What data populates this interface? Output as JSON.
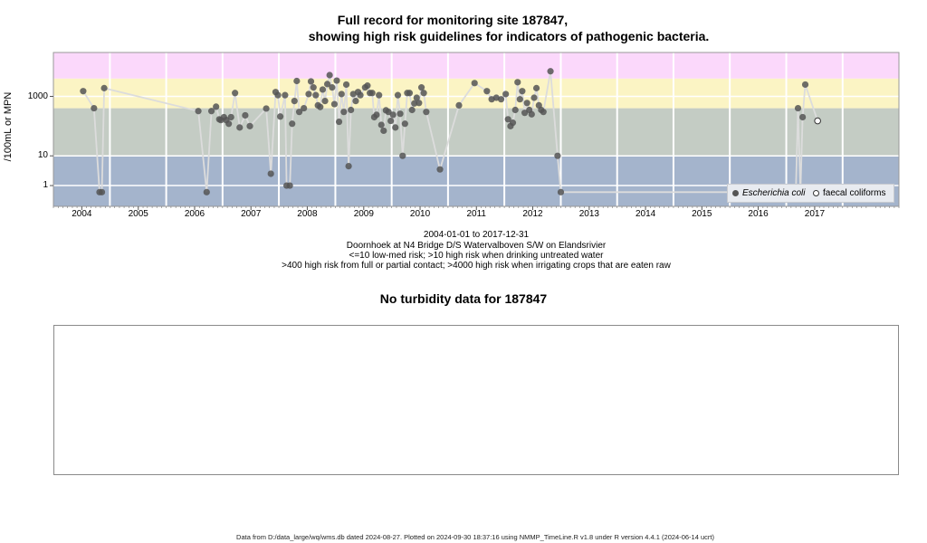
{
  "chart_data": [
    {
      "type": "scatter",
      "title": "Full record for monitoring site 187847,",
      "subtitle": "showing high risk guidelines for indicators of pathogenic bacteria.",
      "ylabel": "/100mL or MPN",
      "yscale": "log",
      "ylim": [
        0.2,
        30000
      ],
      "y_ticks": [
        1,
        10,
        1000
      ],
      "y_tick_labels": [
        "1",
        "10",
        "1000"
      ],
      "xlim": [
        "2003-07-01",
        "2018-07-01"
      ],
      "x_ticks": [
        "2004",
        "2005",
        "2006",
        "2007",
        "2008",
        "2009",
        "2010",
        "2011",
        "2012",
        "2013",
        "2014",
        "2015",
        "2016",
        "2017"
      ],
      "grid": true,
      "legend_placement": "bottom-right",
      "risk_bands": [
        {
          "from": 0.2,
          "to": 10,
          "color": "#a4b4cc"
        },
        {
          "from": 10,
          "to": 400,
          "color": "#c4ccc4"
        },
        {
          "from": 400,
          "to": 4000,
          "color": "#fbf4c4"
        },
        {
          "from": 4000,
          "to": 30000,
          "color": "#fbd8fb"
        }
      ],
      "colors": {
        "ecoli": "#555555",
        "faecal": "#ffffff",
        "line": "#dcdcdc"
      },
      "series": [
        {
          "name": "Escherichia coli",
          "x": [
            "2004-01-10",
            "2004-03-20",
            "2004-04-25",
            "2004-05-10",
            "2004-05-25",
            "2006-01-25",
            "2006-03-20",
            "2006-04-20",
            "2006-05-20",
            "2006-06-10",
            "2006-06-20",
            "2006-07-10",
            "2006-07-25",
            "2006-08-10",
            "2006-08-25",
            "2006-09-20",
            "2006-10-20",
            "2006-11-25",
            "2006-12-25",
            "2007-04-10",
            "2007-05-10",
            "2007-06-10",
            "2007-06-25",
            "2007-07-10",
            "2007-08-10",
            "2007-08-20",
            "2007-09-10",
            "2007-09-25",
            "2007-10-10",
            "2007-10-25",
            "2007-11-10",
            "2007-12-10",
            "2008-01-10",
            "2008-01-25",
            "2008-02-10",
            "2008-02-25",
            "2008-03-10",
            "2008-03-25",
            "2008-04-10",
            "2008-04-25",
            "2008-05-10",
            "2008-05-25",
            "2008-06-10",
            "2008-06-25",
            "2008-07-10",
            "2008-07-25",
            "2008-08-10",
            "2008-08-25",
            "2008-09-10",
            "2008-09-25",
            "2008-10-10",
            "2008-10-25",
            "2008-11-10",
            "2008-11-25",
            "2008-12-10",
            "2009-01-10",
            "2009-01-25",
            "2009-02-10",
            "2009-02-25",
            "2009-03-10",
            "2009-03-25",
            "2009-04-10",
            "2009-04-25",
            "2009-05-10",
            "2009-05-25",
            "2009-06-10",
            "2009-06-25",
            "2009-07-10",
            "2009-07-25",
            "2009-08-10",
            "2009-08-25",
            "2009-09-10",
            "2009-09-25",
            "2009-10-10",
            "2009-10-25",
            "2009-11-10",
            "2009-11-25",
            "2009-12-10",
            "2009-12-25",
            "2010-01-10",
            "2010-01-25",
            "2010-02-10",
            "2010-05-10",
            "2010-09-10",
            "2010-12-20",
            "2011-03-10",
            "2011-04-10",
            "2011-05-10",
            "2011-06-10",
            "2011-07-10",
            "2011-07-25",
            "2011-08-10",
            "2011-08-25",
            "2011-09-10",
            "2011-09-25",
            "2011-10-10",
            "2011-10-25",
            "2011-11-10",
            "2011-11-25",
            "2011-12-10",
            "2011-12-25",
            "2012-01-10",
            "2012-01-25",
            "2012-02-10",
            "2012-02-25",
            "2012-03-10",
            "2012-04-25",
            "2012-06-10",
            "2012-07-01",
            "2016-09-01",
            "2016-09-15",
            "2016-10-01",
            "2016-10-15",
            "2016-11-01"
          ],
          "y": [
            1500,
            400,
            0.6,
            0.6,
            1900,
            320,
            0.6,
            320,
            450,
            170,
            160,
            200,
            160,
            120,
            200,
            1300,
            90,
            230,
            100,
            390,
            2.5,
            1400,
            1100,
            210,
            1100,
            1,
            1,
            120,
            700,
            3300,
            300,
            400,
            1200,
            3200,
            2000,
            1100,
            500,
            440,
            1700,
            700,
            2600,
            5200,
            2000,
            550,
            3400,
            140,
            1200,
            300,
            2500,
            4.5,
            350,
            1200,
            700,
            1400,
            1100,
            2000,
            2300,
            1300,
            1300,
            200,
            240,
            1100,
            110,
            70,
            340,
            300,
            150,
            240,
            90,
            1100,
            260,
            10,
            120,
            1300,
            1300,
            350,
            580,
            900,
            600,
            2000,
            1300,
            300,
            3.5,
            500,
            2800,
            1500,
            800,
            900,
            800,
            1200,
            170,
            100,
            130,
            350,
            3000,
            800,
            1500,
            280,
            600,
            350,
            250,
            900,
            1900,
            500,
            350,
            300,
            7000,
            10,
            0.6,
            0.6,
            400,
            0.6,
            200,
            2500
          ]
        },
        {
          "name": "faecal coliforms",
          "x": [
            "2017-01-20"
          ],
          "y": [
            150
          ]
        }
      ],
      "xlabel_lines": [
        "2004-01-01 to 2017-12-31",
        "Doornhoek at N4 Bridge D/S Watervalboven S/W on Elandsrivier",
        "<=10 low-med risk; >10 high risk when drinking untreated water",
        ">400 high risk from full or partial contact; >4000 high risk when irrigating crops that are eaten raw"
      ]
    }
  ],
  "turbidity_title": "No turbidity data for 187847",
  "footer": "Data from D:/data_large/wq/wms.db dated 2024-08-27. Plotted on 2024-09-30 18:37:16 using NMMP_TimeLine.R v1.8 under R version 4.4.1 (2024-06-14 ucrt)"
}
